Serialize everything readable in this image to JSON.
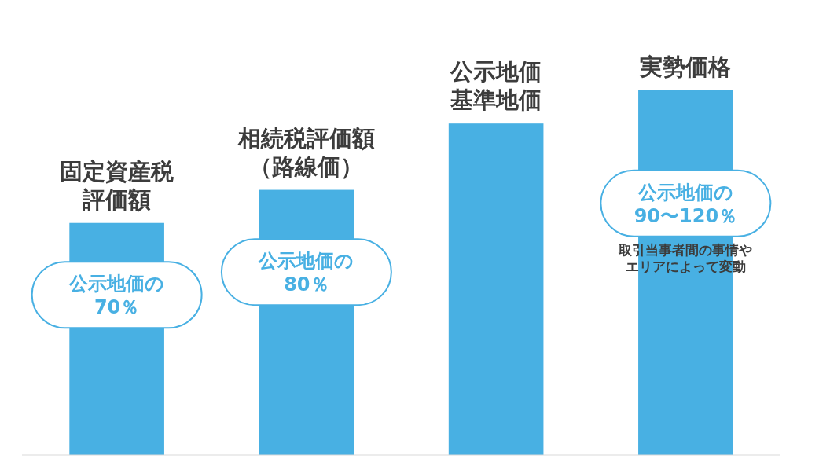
{
  "chart_data": {
    "type": "bar",
    "categories": [
      "固定資産税評価額",
      "相続税評価額（路線価）",
      "公示地価基準地価",
      "実勢価格"
    ],
    "values": [
      70,
      80,
      100,
      110
    ],
    "color": "#48b0e3",
    "value_labels": [
      "公示地価の70％",
      "公示地価の80％",
      null,
      "公示地価の90〜120％"
    ],
    "annotations": [
      "取引当事者間の事情やエリアによって変動"
    ]
  }
}
